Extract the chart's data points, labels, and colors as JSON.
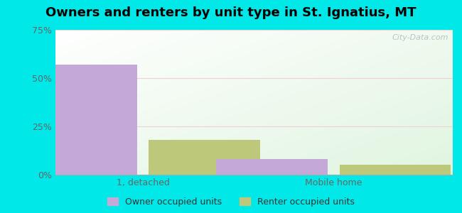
{
  "title": "Owners and renters by unit type in St. Ignatius, MT",
  "categories": [
    "1, detached",
    "Mobile home"
  ],
  "owner_values": [
    57,
    8
  ],
  "renter_values": [
    18,
    5
  ],
  "owner_color": "#c4a8d8",
  "renter_color": "#bec87a",
  "background_color": "#00e8e8",
  "ylim": [
    0,
    75
  ],
  "yticks": [
    0,
    25,
    50,
    75
  ],
  "yticklabels": [
    "0%",
    "25%",
    "50%",
    "75%"
  ],
  "bar_width": 0.28,
  "legend_labels": [
    "Owner occupied units",
    "Renter occupied units"
  ],
  "watermark": "City-Data.com",
  "title_fontsize": 13,
  "tick_fontsize": 9
}
